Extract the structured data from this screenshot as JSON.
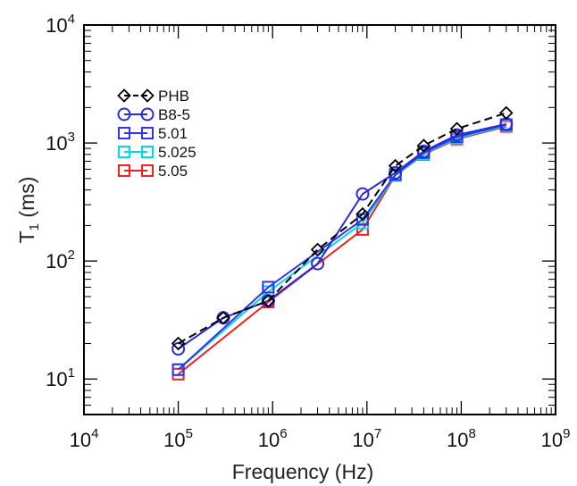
{
  "chart_data": {
    "type": "line",
    "title": "",
    "xlabel": "Frequency (Hz)",
    "ylabel": {
      "main": "T",
      "sub": "1",
      "rest": " (ms)"
    },
    "xscale": "log",
    "yscale": "log",
    "xlim": [
      10000,
      1000000000
    ],
    "ylim": [
      5,
      10000
    ],
    "x_tick_labels": [
      {
        "value": 10000,
        "base": "10",
        "exp": "4"
      },
      {
        "value": 100000,
        "base": "10",
        "exp": "5"
      },
      {
        "value": 1000000,
        "base": "10",
        "exp": "6"
      },
      {
        "value": 10000000,
        "base": "10",
        "exp": "7"
      },
      {
        "value": 100000000,
        "base": "10",
        "exp": "8"
      },
      {
        "value": 1000000000,
        "base": "10",
        "exp": "9"
      }
    ],
    "y_tick_labels": [
      {
        "value": 10,
        "base": "10",
        "exp": "1"
      },
      {
        "value": 100,
        "base": "10",
        "exp": "2"
      },
      {
        "value": 1000,
        "base": "10",
        "exp": "3"
      },
      {
        "value": 10000,
        "base": "10",
        "exp": "4"
      }
    ],
    "legend_position": "upper-left",
    "grid": false,
    "series": [
      {
        "name": "PHB",
        "color": "#000000",
        "marker": "diamond",
        "dashed": true,
        "x": [
          100000,
          300000,
          900000,
          3000000,
          9000000,
          20000000,
          40000000,
          90000000,
          300000000
        ],
        "y": [
          20,
          33,
          46,
          125,
          250,
          640,
          950,
          1320,
          1800
        ]
      },
      {
        "name": "B8-5",
        "color": "#2b2bd8",
        "marker": "circle",
        "dashed": false,
        "x": [
          100000,
          300000,
          900000,
          3000000,
          9000000,
          20000000,
          40000000,
          90000000,
          300000000
        ],
        "y": [
          18,
          33,
          46,
          95,
          370,
          560,
          850,
          1170,
          1450
        ]
      },
      {
        "name": "5.01",
        "color": "#3333ee",
        "marker": "square",
        "dashed": false,
        "x": [
          100000,
          900000,
          9000000,
          20000000,
          40000000,
          90000000,
          300000000
        ],
        "y": [
          12,
          60,
          225,
          540,
          830,
          1130,
          1430
        ]
      },
      {
        "name": "5.025",
        "color": "#00d8e8",
        "marker": "square",
        "dashed": false,
        "x": [
          100000,
          900000,
          9000000,
          20000000,
          40000000,
          90000000,
          300000000
        ],
        "y": [
          12,
          55,
          210,
          530,
          810,
          1100,
          1400
        ]
      },
      {
        "name": "5.05",
        "color": "#ee2222",
        "marker": "square",
        "dashed": false,
        "x": [
          100000,
          900000,
          9000000,
          20000000,
          40000000,
          90000000,
          300000000
        ],
        "y": [
          11,
          45,
          185,
          530,
          800,
          1080,
          1380
        ]
      }
    ]
  }
}
